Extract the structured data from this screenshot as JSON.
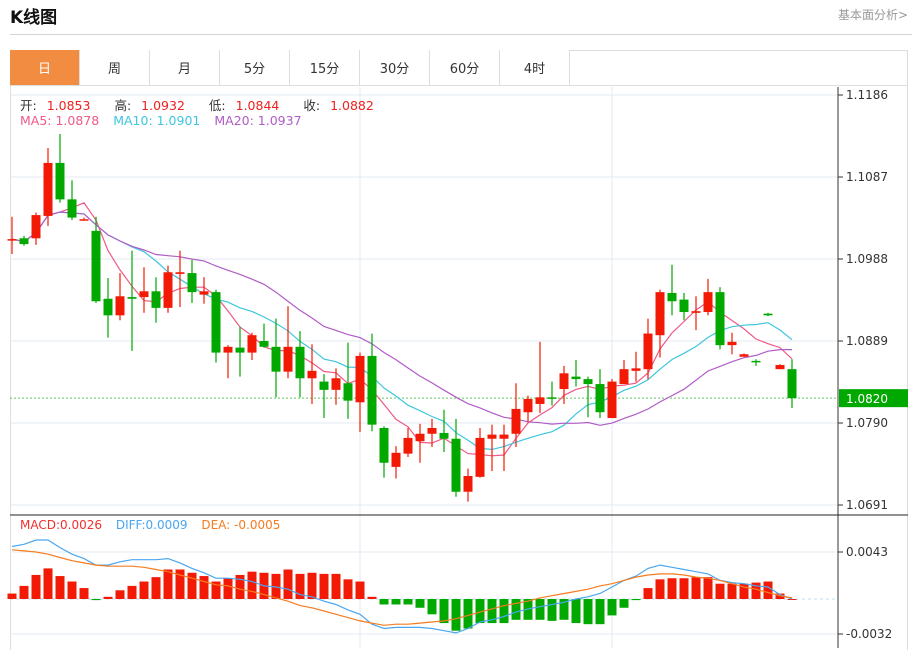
{
  "header": {
    "title": "K线图",
    "link": "基本面分析>"
  },
  "tabs": [
    {
      "label": "日",
      "active": true
    },
    {
      "label": "周"
    },
    {
      "label": "月"
    },
    {
      "label": "5分"
    },
    {
      "label": "15分"
    },
    {
      "label": "30分"
    },
    {
      "label": "60分"
    },
    {
      "label": "4时"
    }
  ],
  "ohlc_legend": {
    "open_label": "开:",
    "open": "1.0853",
    "high_label": "高:",
    "high": "1.0932",
    "low_label": "低:",
    "low": "1.0844",
    "close_label": "收:",
    "close": "1.0882"
  },
  "ma_legend": {
    "ma5": "MA5: 1.0878",
    "ma10": "MA10: 1.0901",
    "ma20": "MA20: 1.0937"
  },
  "macd_legend": {
    "macd": "MACD:0.0026",
    "diff": "DIFF:0.0009",
    "dea": "DEA: -0.0005"
  },
  "colors": {
    "up": "#f21a05",
    "down": "#00a800",
    "ma5": "#ee5a86",
    "ma10": "#3ec6de",
    "ma20": "#b05cc6",
    "diff": "#4aa6f0",
    "dea": "#f57c20",
    "accent": "#f28c40"
  },
  "chart_data": [
    {
      "type": "candlestick",
      "title": "K线图",
      "yticks": [
        "1.1186",
        "1.1087",
        "1.0988",
        "1.0889",
        "1.0790",
        "1.0691"
      ],
      "ylim": [
        1.0691,
        1.1186
      ],
      "current_price": "1.0820",
      "ma_periods": [
        5,
        10,
        20
      ],
      "candles_ohlc": [
        [
          1.1011,
          1.1039,
          1.0994,
          1.1012
        ],
        [
          1.1013,
          1.1016,
          1.1004,
          1.1006
        ],
        [
          1.1013,
          1.1044,
          1.1005,
          1.1041
        ],
        [
          1.104,
          1.1122,
          1.1028,
          1.1104
        ],
        [
          1.1104,
          1.1139,
          1.1056,
          1.106
        ],
        [
          1.106,
          1.1083,
          1.1035,
          1.1038
        ],
        [
          1.1036,
          1.1038,
          1.1035,
          1.1036
        ],
        [
          1.1022,
          1.1039,
          1.0935,
          1.0937
        ],
        [
          1.094,
          1.0965,
          1.0893,
          1.092
        ],
        [
          1.092,
          1.0971,
          1.0914,
          1.0943
        ],
        [
          1.0942,
          1.0998,
          1.0877,
          1.094
        ],
        [
          1.0942,
          1.0978,
          1.0923,
          1.0949
        ],
        [
          1.0949,
          1.0966,
          1.0911,
          1.0929
        ],
        [
          1.0929,
          1.098,
          1.0923,
          1.0972
        ],
        [
          1.097,
          1.0998,
          1.093,
          1.0972
        ],
        [
          1.0971,
          1.0987,
          1.0935,
          1.0948
        ],
        [
          1.0945,
          1.0966,
          1.0934,
          1.0949
        ],
        [
          1.0948,
          1.0951,
          1.0863,
          1.0875
        ],
        [
          1.0875,
          1.0884,
          1.0844,
          1.0882
        ],
        [
          1.0881,
          1.0906,
          1.0846,
          1.0875
        ],
        [
          1.0875,
          1.0899,
          1.0866,
          1.0896
        ],
        [
          1.0889,
          1.091,
          1.0881,
          1.0882
        ],
        [
          1.0882,
          1.0916,
          1.0821,
          1.0852
        ],
        [
          1.0852,
          1.0931,
          1.0844,
          1.0882
        ],
        [
          1.0882,
          1.0901,
          1.0821,
          1.0844
        ],
        [
          1.0844,
          1.0885,
          1.0813,
          1.0853
        ],
        [
          1.084,
          1.0849,
          1.0796,
          1.083
        ],
        [
          1.083,
          1.0856,
          1.0812,
          1.0844
        ],
        [
          1.0838,
          1.0887,
          1.0795,
          1.0817
        ],
        [
          1.0815,
          1.0875,
          1.0779,
          1.0871
        ],
        [
          1.0871,
          1.0898,
          1.078,
          1.0788
        ],
        [
          1.0784,
          1.0786,
          1.0724,
          1.0742
        ],
        [
          1.0737,
          1.0762,
          1.0723,
          1.0754
        ],
        [
          1.0753,
          1.0784,
          1.0749,
          1.0772
        ],
        [
          1.0768,
          1.0789,
          1.0742,
          1.0777
        ],
        [
          1.0777,
          1.0795,
          1.0761,
          1.0784
        ],
        [
          1.0778,
          1.0806,
          1.0755,
          1.0771
        ],
        [
          1.0771,
          1.0795,
          1.0701,
          1.0707
        ],
        [
          1.0707,
          1.0735,
          1.0695,
          1.0726
        ],
        [
          1.0725,
          1.0784,
          1.0724,
          1.0772
        ],
        [
          1.0771,
          1.0788,
          1.0732,
          1.0776
        ],
        [
          1.0771,
          1.0788,
          1.0732,
          1.0776
        ],
        [
          1.0777,
          1.0838,
          1.0761,
          1.0807
        ],
        [
          1.0803,
          1.0823,
          1.0791,
          1.0819
        ],
        [
          1.0813,
          1.0888,
          1.0802,
          1.0821
        ],
        [
          1.0821,
          1.084,
          1.0811,
          1.082
        ],
        [
          1.0831,
          1.0859,
          1.0813,
          1.085
        ],
        [
          1.0846,
          1.0866,
          1.0834,
          1.0843
        ],
        [
          1.0843,
          1.0846,
          1.0797,
          1.0837
        ],
        [
          1.0837,
          1.0855,
          1.0796,
          1.0803
        ],
        [
          1.0796,
          1.0843,
          1.0796,
          1.084
        ],
        [
          1.0837,
          1.0866,
          1.0837,
          1.0855
        ],
        [
          1.0853,
          1.0876,
          1.084,
          1.0856
        ],
        [
          1.0855,
          1.0916,
          1.0843,
          1.0898
        ],
        [
          1.0896,
          1.0951,
          1.0869,
          1.0948
        ],
        [
          1.0947,
          1.0981,
          1.092,
          1.0937
        ],
        [
          1.0939,
          1.0947,
          1.0914,
          1.0924
        ],
        [
          1.0923,
          1.0943,
          1.0902,
          1.0925
        ],
        [
          1.0924,
          1.0964,
          1.092,
          1.0948
        ],
        [
          1.0948,
          1.0954,
          1.0879,
          1.0884
        ],
        [
          1.0884,
          1.0899,
          1.0873,
          1.0888
        ],
        [
          1.087,
          1.0874,
          1.087,
          1.0873
        ],
        [
          1.0865,
          1.0867,
          1.0859,
          1.0864
        ],
        [
          1.0922,
          1.0923,
          1.0919,
          1.092
        ],
        [
          1.0855,
          1.0861,
          1.0855,
          1.086
        ],
        [
          1.0855,
          1.0867,
          1.0808,
          1.082
        ]
      ]
    },
    {
      "type": "bar+line",
      "title": "MACD",
      "yticks": [
        "0.0043",
        "-0.0032"
      ],
      "ylim": [
        -0.0032,
        0.0043
      ],
      "macd": [
        0.0005,
        0.0012,
        0.0022,
        0.0028,
        0.0021,
        0.0016,
        0.001,
        -0.0001,
        0.0002,
        0.0008,
        0.0012,
        0.0016,
        0.002,
        0.0027,
        0.0027,
        0.0024,
        0.0021,
        0.0016,
        0.0019,
        0.0022,
        0.0025,
        0.0024,
        0.0023,
        0.0027,
        0.0023,
        0.0024,
        0.0023,
        0.0023,
        0.0018,
        0.0016,
        0.0002,
        -0.0005,
        -0.0005,
        -0.0005,
        -0.0008,
        -0.0014,
        -0.0022,
        -0.0029,
        -0.0027,
        -0.0022,
        -0.0022,
        -0.0022,
        -0.0019,
        -0.0019,
        -0.0019,
        -0.002,
        -0.0019,
        -0.0022,
        -0.0023,
        -0.0023,
        -0.0015,
        -0.0008,
        -0.0001,
        0.001,
        0.0018,
        0.0019,
        0.0019,
        0.002,
        0.002,
        0.0014,
        0.0014,
        0.0014,
        0.0015,
        0.0016,
        0.0005,
        0.0
      ],
      "diff": [
        0.0048,
        0.005,
        0.0054,
        0.0054,
        0.0047,
        0.0041,
        0.0037,
        0.0031,
        0.0031,
        0.0034,
        0.0036,
        0.0036,
        0.0036,
        0.0037,
        0.0033,
        0.0028,
        0.0024,
        0.0019,
        0.0019,
        0.0018,
        0.0016,
        0.0012,
        0.0011,
        0.0009,
        0.0004,
        0.0002,
        -0.0002,
        -0.0005,
        -0.001,
        -0.0014,
        -0.0023,
        -0.0027,
        -0.0026,
        -0.0026,
        -0.0026,
        -0.0027,
        -0.0029,
        -0.0031,
        -0.0027,
        -0.0021,
        -0.0019,
        -0.0016,
        -0.0012,
        -0.0009,
        -0.0007,
        -0.0005,
        -0.0003,
        0.0,
        0.0002,
        0.0005,
        0.0011,
        0.0017,
        0.0021,
        0.0028,
        0.0031,
        0.0029,
        0.0027,
        0.0025,
        0.0023,
        0.0017,
        0.0015,
        0.0014,
        0.0012,
        0.0011,
        0.0004,
        0.0
      ],
      "dea": [
        0.0045,
        0.0044,
        0.0043,
        0.0041,
        0.0038,
        0.0035,
        0.0033,
        0.0031,
        0.003,
        0.003,
        0.003,
        0.0029,
        0.0027,
        0.0025,
        0.0022,
        0.0019,
        0.0016,
        0.0013,
        0.0012,
        0.0009,
        0.0007,
        0.0004,
        0.0001,
        -0.0002,
        -0.0006,
        -0.0008,
        -0.0011,
        -0.0014,
        -0.0017,
        -0.002,
        -0.0022,
        -0.0024,
        -0.0023,
        -0.0023,
        -0.0022,
        -0.0021,
        -0.002,
        -0.0018,
        -0.0015,
        -0.0012,
        -0.0009,
        -0.0006,
        -0.0004,
        -0.0002,
        0.0001,
        0.0003,
        0.0005,
        0.0007,
        0.0009,
        0.0012,
        0.0014,
        0.0017,
        0.002,
        0.0022,
        0.0023,
        0.0023,
        0.0022,
        0.002,
        0.0019,
        0.0017,
        0.0014,
        0.0011,
        0.0009,
        0.0006,
        0.0003,
        0.0001
      ]
    }
  ]
}
